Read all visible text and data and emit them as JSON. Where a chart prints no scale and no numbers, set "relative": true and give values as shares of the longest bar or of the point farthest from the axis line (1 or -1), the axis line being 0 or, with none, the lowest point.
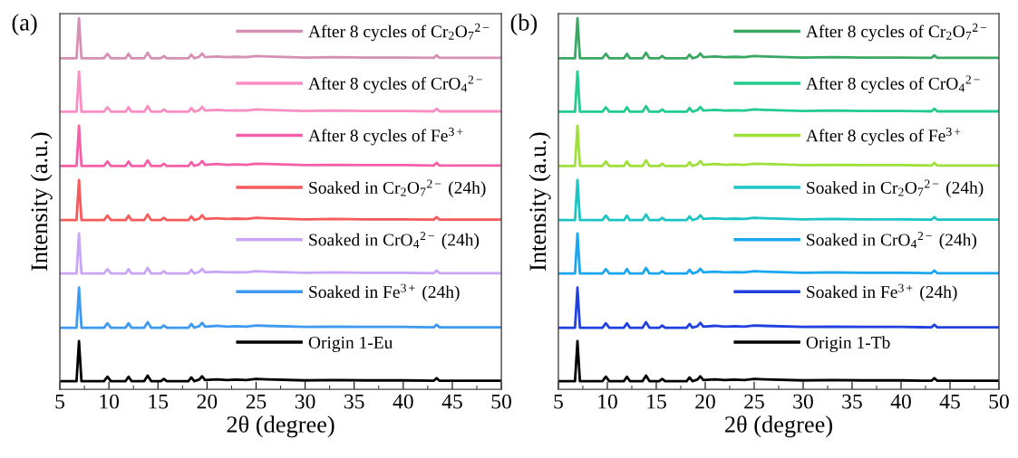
{
  "chart_data": [
    {
      "type": "line",
      "title": "(a)",
      "xlabel": "2θ (degree)",
      "ylabel": "Intensity (a.u.)",
      "relative": true,
      "xlim": [
        5,
        50
      ],
      "xticks": [
        5,
        10,
        15,
        20,
        25,
        30,
        35,
        40,
        45,
        50
      ],
      "legend": "top right",
      "grid": false,
      "x": [
        5,
        6.7,
        6.95,
        7.2,
        9.5,
        9.85,
        10.2,
        11.7,
        12.0,
        12.3,
        13.6,
        13.95,
        14.3,
        15.3,
        15.6,
        15.9,
        18.1,
        18.4,
        18.7,
        19.2,
        19.5,
        19.8,
        21,
        22,
        23,
        24,
        25,
        26,
        30,
        33,
        36,
        40,
        43.1,
        43.4,
        43.7,
        50
      ],
      "series": [
        {
          "name": "After 8 cycles of Cr$_{2}$O$_{7}$$^{2−}$",
          "color": "#d690b6",
          "values": [
            0.892,
            0.892,
            1.0,
            0.892,
            0.892,
            0.904,
            0.892,
            0.892,
            0.904,
            0.892,
            0.892,
            0.907,
            0.892,
            0.892,
            0.898,
            0.892,
            0.892,
            0.902,
            0.892,
            0.896,
            0.905,
            0.895,
            0.897,
            0.895,
            0.896,
            0.895,
            0.898,
            0.897,
            0.894,
            0.895,
            0.894,
            0.894,
            0.893,
            0.9,
            0.893,
            0.893
          ]
        },
        {
          "name": "After 8 cycles of CrO$_{4}$$^{2−}$",
          "color": "#f98ec4",
          "values": [
            0.748,
            0.748,
            0.856,
            0.748,
            0.748,
            0.76,
            0.748,
            0.748,
            0.76,
            0.748,
            0.748,
            0.763,
            0.748,
            0.748,
            0.754,
            0.748,
            0.748,
            0.758,
            0.748,
            0.752,
            0.761,
            0.751,
            0.753,
            0.751,
            0.752,
            0.751,
            0.754,
            0.753,
            0.75,
            0.751,
            0.75,
            0.75,
            0.749,
            0.756,
            0.749,
            0.749
          ]
        },
        {
          "name": "After 8 cycles of Fe$^{3+}$",
          "color": "#f55fa8",
          "values": [
            0.602,
            0.602,
            0.71,
            0.602,
            0.602,
            0.614,
            0.602,
            0.602,
            0.614,
            0.602,
            0.602,
            0.617,
            0.602,
            0.602,
            0.608,
            0.602,
            0.602,
            0.612,
            0.602,
            0.606,
            0.615,
            0.605,
            0.607,
            0.605,
            0.606,
            0.605,
            0.608,
            0.607,
            0.604,
            0.605,
            0.604,
            0.604,
            0.603,
            0.61,
            0.603,
            0.603
          ]
        },
        {
          "name": "Soaked in Cr$_{2}$O$_{7}$$^{2−}$ (24h)",
          "color": "#f65a5a",
          "values": [
            0.456,
            0.456,
            0.564,
            0.456,
            0.456,
            0.468,
            0.456,
            0.456,
            0.468,
            0.456,
            0.456,
            0.471,
            0.456,
            0.456,
            0.462,
            0.456,
            0.456,
            0.466,
            0.456,
            0.46,
            0.469,
            0.459,
            0.461,
            0.459,
            0.46,
            0.459,
            0.462,
            0.461,
            0.458,
            0.459,
            0.458,
            0.458,
            0.457,
            0.464,
            0.457,
            0.457
          ]
        },
        {
          "name": "Soaked in CrO$_{4}$$^{2−}$ (24h)",
          "color": "#c9a6f5",
          "values": [
            0.312,
            0.312,
            0.42,
            0.312,
            0.312,
            0.324,
            0.312,
            0.312,
            0.324,
            0.312,
            0.312,
            0.327,
            0.312,
            0.312,
            0.318,
            0.312,
            0.312,
            0.322,
            0.312,
            0.316,
            0.325,
            0.315,
            0.317,
            0.315,
            0.316,
            0.315,
            0.318,
            0.317,
            0.314,
            0.315,
            0.314,
            0.314,
            0.313,
            0.32,
            0.313,
            0.313
          ]
        },
        {
          "name": "Soaked in Fe$^{3+}$ (24h)",
          "color": "#3d9af0",
          "values": [
            0.166,
            0.166,
            0.274,
            0.166,
            0.166,
            0.178,
            0.166,
            0.166,
            0.178,
            0.166,
            0.166,
            0.181,
            0.166,
            0.166,
            0.172,
            0.166,
            0.166,
            0.176,
            0.166,
            0.17,
            0.179,
            0.169,
            0.171,
            0.169,
            0.17,
            0.169,
            0.172,
            0.171,
            0.168,
            0.169,
            0.168,
            0.168,
            0.167,
            0.174,
            0.167,
            0.167
          ]
        },
        {
          "name": "Origin 1-Eu",
          "color": "#000000",
          "values": [
            0.022,
            0.022,
            0.13,
            0.022,
            0.022,
            0.034,
            0.022,
            0.022,
            0.034,
            0.022,
            0.022,
            0.037,
            0.022,
            0.022,
            0.028,
            0.022,
            0.022,
            0.032,
            0.022,
            0.026,
            0.035,
            0.025,
            0.027,
            0.025,
            0.026,
            0.025,
            0.028,
            0.027,
            0.024,
            0.025,
            0.024,
            0.024,
            0.023,
            0.03,
            0.023,
            0.023
          ]
        }
      ]
    },
    {
      "type": "line",
      "title": "(b)",
      "xlabel": "2θ (degree)",
      "ylabel": "Intensity (a.u.)",
      "relative": true,
      "xlim": [
        5,
        50
      ],
      "xticks": [
        5,
        10,
        15,
        20,
        25,
        30,
        35,
        40,
        45,
        50
      ],
      "legend": "top right",
      "grid": false,
      "x": [
        5,
        6.7,
        6.95,
        7.2,
        9.5,
        9.85,
        10.2,
        11.7,
        12.0,
        12.3,
        13.6,
        13.95,
        14.3,
        15.3,
        15.6,
        15.9,
        18.1,
        18.4,
        18.7,
        19.2,
        19.5,
        19.8,
        21,
        22,
        23,
        24,
        25,
        26,
        30,
        33,
        36,
        40,
        43.1,
        43.4,
        43.7,
        50
      ],
      "series": [
        {
          "name": "After 8 cycles of Cr$_{2}$O$_{7}$$^{2−}$",
          "color": "#3aa862",
          "values": [
            0.892,
            0.892,
            1.0,
            0.892,
            0.892,
            0.904,
            0.892,
            0.892,
            0.904,
            0.892,
            0.892,
            0.907,
            0.892,
            0.892,
            0.898,
            0.892,
            0.892,
            0.902,
            0.892,
            0.896,
            0.905,
            0.895,
            0.897,
            0.895,
            0.896,
            0.895,
            0.898,
            0.897,
            0.894,
            0.895,
            0.894,
            0.894,
            0.893,
            0.9,
            0.893,
            0.893
          ]
        },
        {
          "name": "After 8 cycles of CrO$_{4}$$^{2−}$",
          "color": "#22cc8c",
          "values": [
            0.748,
            0.748,
            0.856,
            0.748,
            0.748,
            0.76,
            0.748,
            0.748,
            0.76,
            0.748,
            0.748,
            0.763,
            0.748,
            0.748,
            0.754,
            0.748,
            0.748,
            0.758,
            0.748,
            0.752,
            0.761,
            0.751,
            0.753,
            0.751,
            0.752,
            0.751,
            0.754,
            0.753,
            0.75,
            0.751,
            0.75,
            0.75,
            0.749,
            0.756,
            0.749,
            0.749
          ]
        },
        {
          "name": "After 8 cycles of Fe$^{3+}$",
          "color": "#9ee03a",
          "values": [
            0.602,
            0.602,
            0.71,
            0.602,
            0.602,
            0.614,
            0.602,
            0.602,
            0.614,
            0.602,
            0.602,
            0.617,
            0.602,
            0.602,
            0.608,
            0.602,
            0.602,
            0.612,
            0.602,
            0.606,
            0.615,
            0.605,
            0.607,
            0.605,
            0.606,
            0.605,
            0.608,
            0.607,
            0.604,
            0.605,
            0.604,
            0.604,
            0.603,
            0.61,
            0.603,
            0.603
          ]
        },
        {
          "name": "Soaked in Cr$_{2}$O$_{7}$$^{2−}$ (24h)",
          "color": "#1cc4c4",
          "values": [
            0.456,
            0.456,
            0.564,
            0.456,
            0.456,
            0.468,
            0.456,
            0.456,
            0.468,
            0.456,
            0.456,
            0.471,
            0.456,
            0.456,
            0.462,
            0.456,
            0.456,
            0.466,
            0.456,
            0.46,
            0.469,
            0.459,
            0.461,
            0.459,
            0.46,
            0.459,
            0.462,
            0.461,
            0.458,
            0.459,
            0.458,
            0.458,
            0.457,
            0.464,
            0.457,
            0.457
          ]
        },
        {
          "name": "Soaked in CrO$_{4}$$^{2−}$ (24h)",
          "color": "#1aa6f0",
          "values": [
            0.312,
            0.312,
            0.42,
            0.312,
            0.312,
            0.324,
            0.312,
            0.312,
            0.324,
            0.312,
            0.312,
            0.327,
            0.312,
            0.312,
            0.318,
            0.312,
            0.312,
            0.322,
            0.312,
            0.316,
            0.325,
            0.315,
            0.317,
            0.315,
            0.316,
            0.315,
            0.318,
            0.317,
            0.314,
            0.315,
            0.314,
            0.314,
            0.313,
            0.32,
            0.313,
            0.313
          ]
        },
        {
          "name": "Soaked in Fe$^{3+}$ (24h)",
          "color": "#2040e0",
          "values": [
            0.166,
            0.166,
            0.274,
            0.166,
            0.166,
            0.178,
            0.166,
            0.166,
            0.178,
            0.166,
            0.166,
            0.181,
            0.166,
            0.166,
            0.172,
            0.166,
            0.166,
            0.176,
            0.166,
            0.17,
            0.179,
            0.169,
            0.171,
            0.169,
            0.17,
            0.169,
            0.172,
            0.171,
            0.168,
            0.169,
            0.168,
            0.168,
            0.167,
            0.174,
            0.167,
            0.167
          ]
        },
        {
          "name": "Origin 1-Tb",
          "color": "#000000",
          "values": [
            0.022,
            0.022,
            0.13,
            0.022,
            0.022,
            0.034,
            0.022,
            0.022,
            0.034,
            0.022,
            0.022,
            0.037,
            0.022,
            0.022,
            0.028,
            0.022,
            0.022,
            0.032,
            0.022,
            0.026,
            0.035,
            0.025,
            0.027,
            0.025,
            0.026,
            0.025,
            0.028,
            0.027,
            0.024,
            0.025,
            0.024,
            0.024,
            0.023,
            0.03,
            0.023,
            0.023
          ]
        }
      ]
    }
  ]
}
